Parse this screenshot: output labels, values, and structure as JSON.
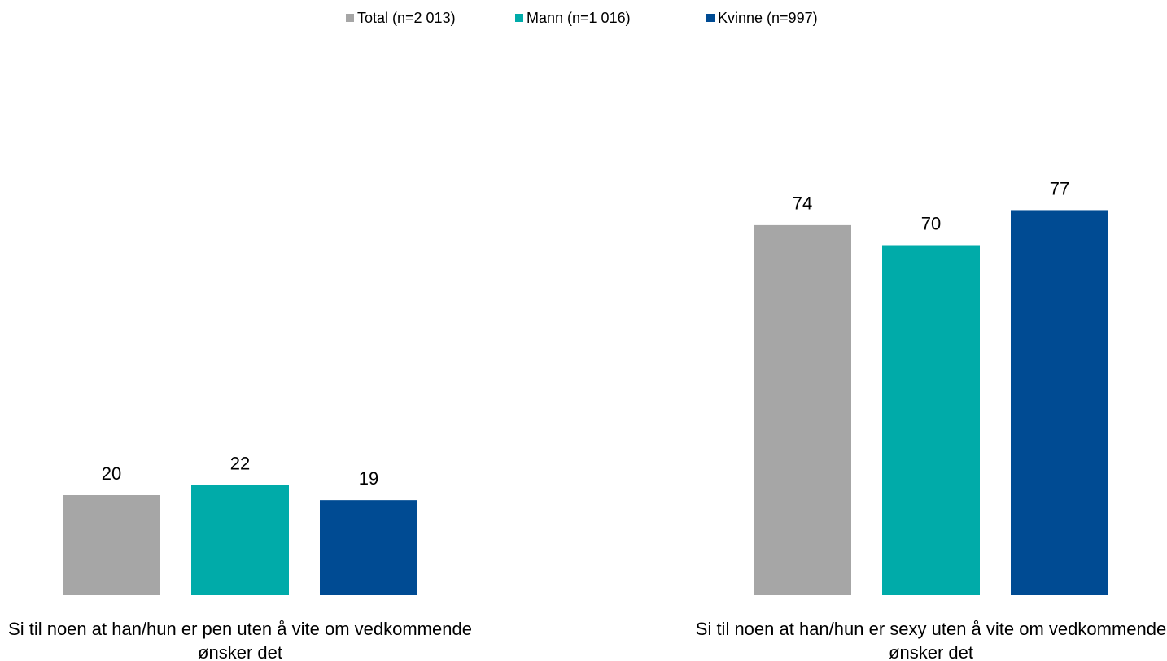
{
  "chart_data": {
    "type": "bar",
    "categories": [
      "Si til noen at han/hun er pen uten å vite om vedkommende ønsker det",
      "Si til noen at han/hun er sexy uten å vite om vedkommende ønsker det"
    ],
    "series": [
      {
        "name": "Total (n=2 013)",
        "color": "#a6a6a6",
        "values": [
          20,
          74
        ]
      },
      {
        "name": "Mann (n=1 016)",
        "color": "#00aba9",
        "values": [
          22,
          70
        ]
      },
      {
        "name": "Kvinne (n=997)",
        "color": "#004b93",
        "values": [
          19,
          77
        ]
      }
    ],
    "ylim": [
      0,
      100
    ],
    "legend": "top"
  }
}
